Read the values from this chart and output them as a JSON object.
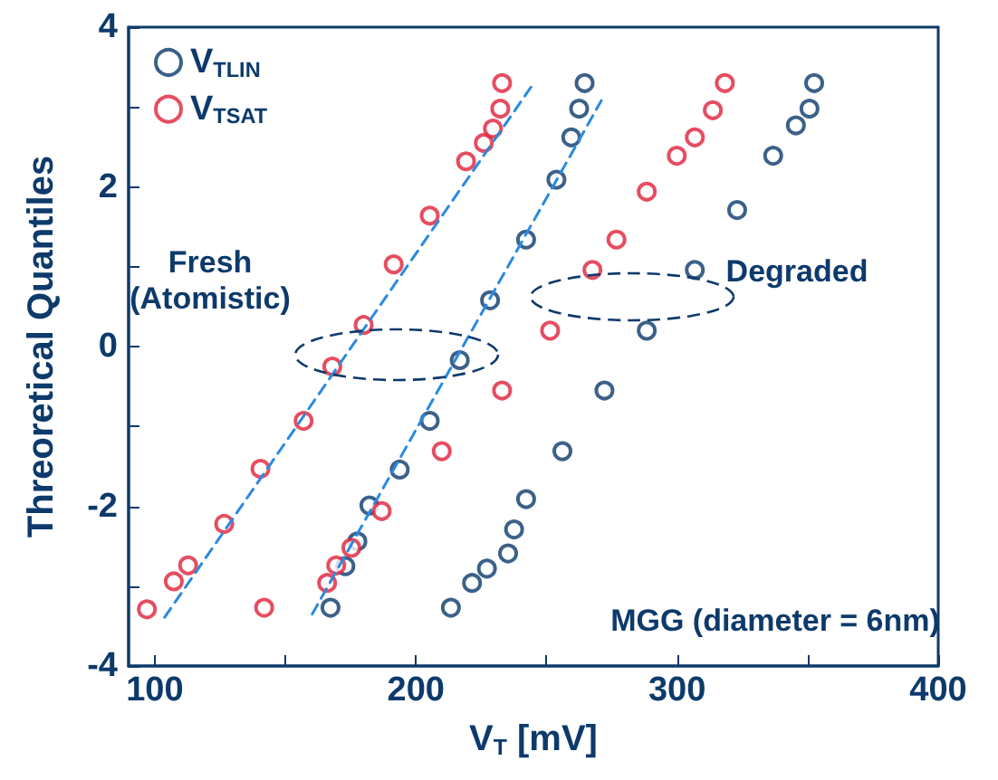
{
  "chart_data": {
    "type": "scatter",
    "xlabel": "V$_{T}$ [mV]",
    "ylabel": "Threoretical Quantiles",
    "xlim": [
      90,
      400
    ],
    "xticks": [
      100,
      {
        "value": 150,
        "label": null
      },
      200,
      {
        "value": 250,
        "label": null
      },
      300,
      {
        "value": 350,
        "label": null
      },
      400
    ],
    "ylim": [
      -4,
      4
    ],
    "yticks": [
      -4,
      {
        "value": -3,
        "label": null
      },
      -2,
      {
        "value": -1,
        "label": null
      },
      0,
      {
        "value": 1,
        "label": null
      },
      2,
      {
        "value": 3,
        "label": null
      },
      4
    ],
    "grid": false,
    "legend": "top left",
    "marker": "circle",
    "annotations": [
      "Fresh\n(Atomistic)",
      "Degraded",
      "MGG (diameter = 6nm)"
    ],
    "series": [
      {
        "name": "V$_{TLIN}$",
        "color": "#0b3a6b",
        "x": [
          167.3,
          173,
          177.6,
          182.2,
          193.8,
          205.3,
          216.8,
          228.4,
          242.2,
          253.8,
          259.5,
          262.5,
          264.6,
          213.4,
          221.5,
          227.2,
          235.3,
          237.6,
          242.2,
          256.1,
          272.2,
          288.4,
          306.8,
          323,
          336.8,
          345.5,
          350.7,
          352.5
        ],
        "values": [
          -3.27,
          -2.75,
          -2.44,
          -1.99,
          -1.54,
          -0.93,
          -0.17,
          0.58,
          1.34,
          2.09,
          2.62,
          2.98,
          3.3,
          -3.27,
          -2.96,
          -2.78,
          -2.59,
          -2.29,
          -1.91,
          -1.31,
          -0.55,
          0.2,
          0.96,
          1.71,
          2.39,
          2.77,
          2.98,
          3.3
        ]
      },
      {
        "name": "V$_{TSAT}$",
        "color": "#e0203a",
        "x": [
          97,
          107.3,
          112.8,
          126.6,
          140.5,
          141.9,
          157,
          168,
          180,
          191.5,
          205.3,
          219.2,
          226,
          229.5,
          232.3,
          233,
          166,
          169.5,
          175.3,
          186.9,
          209.9,
          233,
          251.4,
          267.6,
          276.8,
          288.4,
          299.9,
          306.8,
          313.7,
          318.3
        ],
        "values": [
          -3.29,
          -2.94,
          -2.74,
          -2.22,
          -1.53,
          -3.27,
          -0.93,
          -0.25,
          0.27,
          1.03,
          1.64,
          2.32,
          2.55,
          2.73,
          2.98,
          3.3,
          -2.96,
          -2.74,
          -2.52,
          -2.06,
          -1.31,
          -0.55,
          0.2,
          0.96,
          1.34,
          1.94,
          2.39,
          2.62,
          2.96,
          3.3
        ]
      },
      {
        "type": "line",
        "color": "#2a8ae0",
        "line_style": "dashed",
        "marker": "none",
        "x": [
          103.8,
          244.5
        ],
        "values": [
          -3.39,
          3.27
        ]
      },
      {
        "type": "line",
        "color": "#2a8ae0",
        "line_style": "dashed",
        "marker": "none",
        "x": [
          160.3,
          271
        ],
        "values": [
          -3.35,
          3.08
        ]
      }
    ]
  }
}
